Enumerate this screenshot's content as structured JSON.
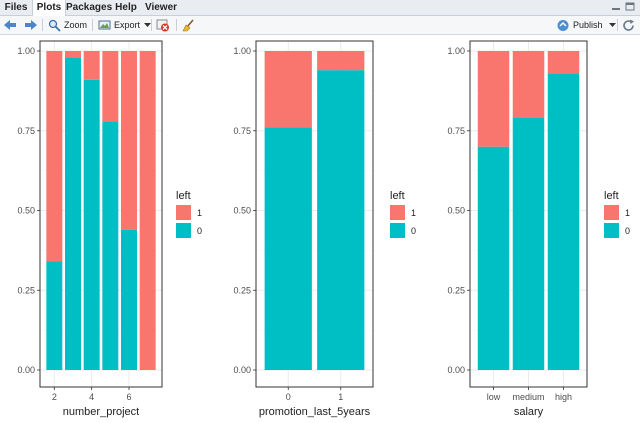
{
  "tabs": [
    {
      "label": "Files"
    },
    {
      "label": "Plots",
      "active": true
    },
    {
      "label": "Packages"
    },
    {
      "label": "Help"
    },
    {
      "label": "Viewer"
    }
  ],
  "toolbar": {
    "zoom_label": "Zoom",
    "export_label": "Export",
    "publish_label": "Publish"
  },
  "colors": {
    "left_1": "#F8766D",
    "left_0": "#00BFC4",
    "panel_border": "#333333",
    "grid": "#ebebeb"
  },
  "chart_data": [
    {
      "type": "bar",
      "stacked": "fill",
      "xlabel": "number_project",
      "ylabel": "",
      "ylim": [
        0,
        1
      ],
      "yticks": [
        "0.00",
        "0.25",
        "0.50",
        "0.75",
        "1.00"
      ],
      "x": [
        2,
        3,
        4,
        5,
        6,
        7
      ],
      "xtick_labels": [
        "2",
        "4",
        "6"
      ],
      "xtick_values": [
        2,
        4,
        6
      ],
      "series": [
        {
          "name": "1",
          "values": [
            0.66,
            0.02,
            0.09,
            0.22,
            0.56,
            1.0
          ]
        },
        {
          "name": "0",
          "values": [
            0.34,
            0.98,
            0.91,
            0.78,
            0.44,
            0.0
          ]
        }
      ],
      "legend": {
        "title": "left",
        "entries": [
          "1",
          "0"
        ]
      }
    },
    {
      "type": "bar",
      "stacked": "fill",
      "xlabel": "promotion_last_5years",
      "ylabel": "",
      "ylim": [
        0,
        1
      ],
      "yticks": [
        "0.00",
        "0.25",
        "0.50",
        "0.75",
        "1.00"
      ],
      "categories": [
        "0",
        "1"
      ],
      "series": [
        {
          "name": "1",
          "values": [
            0.24,
            0.06
          ]
        },
        {
          "name": "0",
          "values": [
            0.76,
            0.94
          ]
        }
      ],
      "legend": {
        "title": "left",
        "entries": [
          "1",
          "0"
        ]
      }
    },
    {
      "type": "bar",
      "stacked": "fill",
      "xlabel": "salary",
      "ylabel": "",
      "ylim": [
        0,
        1
      ],
      "yticks": [
        "0.00",
        "0.25",
        "0.50",
        "0.75",
        "1.00"
      ],
      "categories": [
        "low",
        "medium",
        "high"
      ],
      "series": [
        {
          "name": "1",
          "values": [
            0.3,
            0.21,
            0.07
          ]
        },
        {
          "name": "0",
          "values": [
            0.7,
            0.79,
            0.93
          ]
        }
      ],
      "legend": {
        "title": "left",
        "entries": [
          "1",
          "0"
        ]
      }
    }
  ]
}
